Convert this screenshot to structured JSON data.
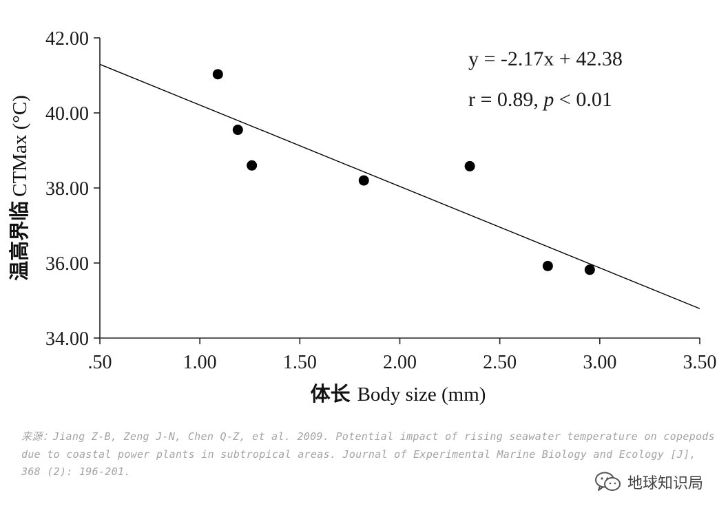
{
  "chart_data": {
    "type": "scatter",
    "x_label_cn": "体长",
    "x_label_en": "Body size (mm)",
    "y_label_cn": "温高界临",
    "y_label_en": "CTMax (°C)",
    "xlim": [
      0.5,
      3.5
    ],
    "ylim": [
      34.0,
      42.0
    ],
    "x_ticks": [
      ".50",
      "1.00",
      "1.50",
      "2.00",
      "2.50",
      "3.00",
      "3.50"
    ],
    "x_tick_values": [
      0.5,
      1.0,
      1.5,
      2.0,
      2.5,
      3.0,
      3.5
    ],
    "y_ticks": [
      "34.00",
      "36.00",
      "38.00",
      "40.00",
      "42.00"
    ],
    "y_tick_values": [
      34.0,
      36.0,
      38.0,
      40.0,
      42.0
    ],
    "points": [
      {
        "x": 1.09,
        "y": 41.03
      },
      {
        "x": 1.19,
        "y": 39.55
      },
      {
        "x": 1.26,
        "y": 38.6
      },
      {
        "x": 1.82,
        "y": 38.2
      },
      {
        "x": 2.35,
        "y": 38.58
      },
      {
        "x": 2.74,
        "y": 35.92
      },
      {
        "x": 2.95,
        "y": 35.82
      }
    ],
    "regression": {
      "slope": -2.17,
      "intercept": 42.38
    },
    "equation_text": "y = -2.17x + 42.38",
    "stats_prefix": "r = 0.89, ",
    "stats_p": "p",
    "stats_suffix": " < 0.01",
    "grid": false,
    "point_color": "#000000",
    "line_color": "#000000"
  },
  "source_text": "来源：Jiang Z-B, Zeng J-N, Chen Q-Z, et al. 2009. Potential impact of rising seawater temperature on copepods due to coastal power plants in subtropical areas. Journal of Experimental Marine Biology and Ecology [J], 368 (2): 196-201.",
  "watermark": {
    "text": "地球知识局",
    "icon": "wechat-icon"
  }
}
